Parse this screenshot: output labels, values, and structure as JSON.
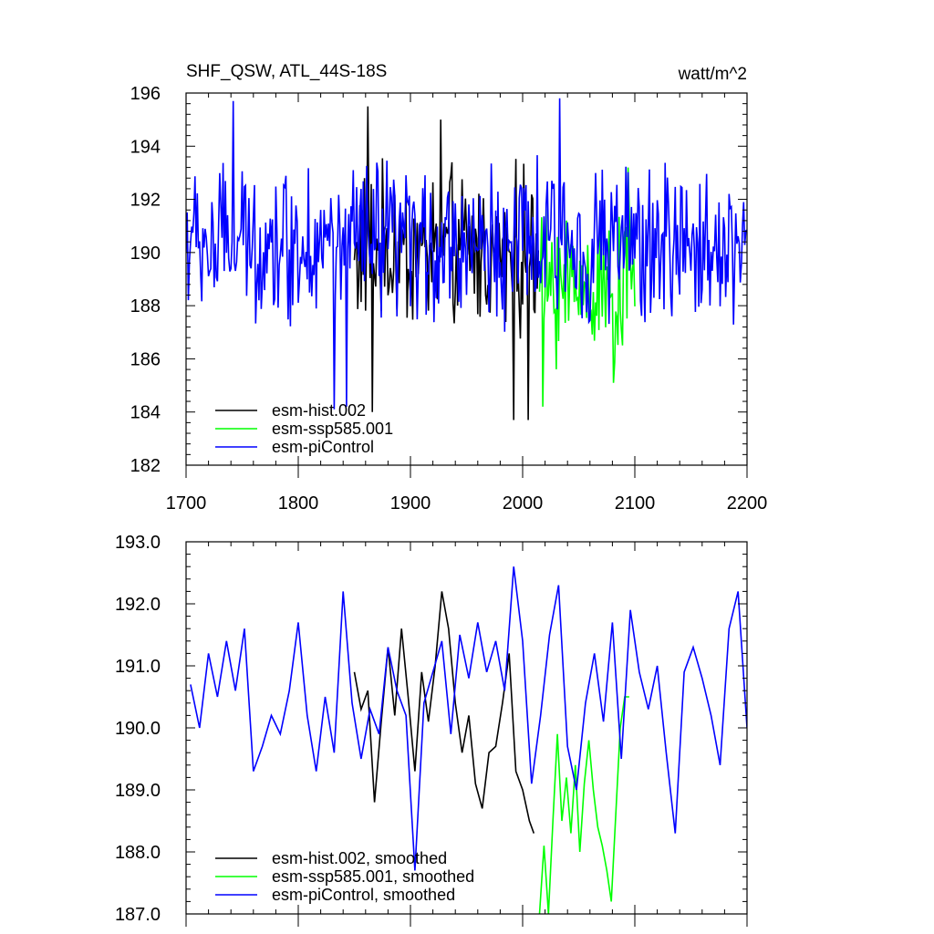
{
  "chart_data": [
    {
      "type": "line",
      "title": "SHF_QSW, ATL_44S-18S",
      "units": "watt/m^2",
      "xlim": [
        1700,
        2200
      ],
      "ylim": [
        182,
        196
      ],
      "x_ticks": [
        1700,
        1800,
        1900,
        2000,
        2100,
        2200
      ],
      "y_ticks": [
        182,
        184,
        186,
        188,
        190,
        192,
        194,
        196
      ],
      "legend": [
        "esm-hist.002",
        "esm-ssp585.001",
        "esm-piControl"
      ],
      "legend_position": "bottom-left",
      "series": [
        {
          "name": "esm-hist.002",
          "color": "#000000",
          "x_range": [
            1850,
            2014
          ],
          "mean": 190.0,
          "amplitude": 2.6,
          "notable": [
            {
              "x": 1862,
              "y": 195.5
            },
            {
              "x": 1866,
              "y": 184.0
            },
            {
              "x": 1992,
              "y": 183.7
            },
            {
              "x": 2005,
              "y": 183.7
            },
            {
              "x": 1927,
              "y": 195.0
            }
          ]
        },
        {
          "name": "esm-ssp585.001",
          "color": "#00ff00",
          "x_range": [
            2015,
            2100
          ],
          "mean": 188.8,
          "amplitude": 2.4,
          "notable": [
            {
              "x": 2018,
              "y": 184.2
            },
            {
              "x": 2094,
              "y": 193.2
            },
            {
              "x": 2081,
              "y": 185.1
            }
          ]
        },
        {
          "name": "esm-piControl",
          "color": "#0000ff",
          "x_range": [
            1700,
            2200
          ],
          "mean": 190.3,
          "amplitude": 2.5,
          "notable": [
            {
              "x": 1742,
              "y": 195.7
            },
            {
              "x": 2033,
              "y": 195.8
            },
            {
              "x": 1832,
              "y": 184.1
            },
            {
              "x": 1843,
              "y": 184.2
            }
          ]
        }
      ]
    },
    {
      "type": "line",
      "title": "",
      "xlim": [
        1700,
        2200
      ],
      "ylim": [
        187.0,
        193.0
      ],
      "y_ticks": [
        "187.0",
        "188.0",
        "189.0",
        "190.0",
        "191.0",
        "192.0",
        "193.0"
      ],
      "legend": [
        "esm-hist.002, smoothed",
        "esm-ssp585.001, smoothed",
        "esm-piControl, smoothed"
      ],
      "legend_position": "bottom-left",
      "series": [
        {
          "name": "esm-hist.002, smoothed",
          "color": "#000000",
          "x": [
            1850,
            1856,
            1862,
            1868,
            1874,
            1880,
            1886,
            1892,
            1898,
            1904,
            1910,
            1916,
            1922,
            1928,
            1934,
            1940,
            1946,
            1952,
            1958,
            1964,
            1970,
            1976,
            1982,
            1988,
            1994,
            2000,
            2006,
            2010
          ],
          "y": [
            190.9,
            190.3,
            190.6,
            188.8,
            190.1,
            191.3,
            190.2,
            191.6,
            190.5,
            189.3,
            190.9,
            190.1,
            191.0,
            192.2,
            191.6,
            190.4,
            189.6,
            190.2,
            189.1,
            188.7,
            189.6,
            189.7,
            190.4,
            191.2,
            189.3,
            189.0,
            188.5,
            188.3
          ]
        },
        {
          "name": "esm-ssp585.001, smoothed",
          "color": "#00ff00",
          "x": [
            2015,
            2019,
            2023,
            2027,
            2031,
            2035,
            2039,
            2043,
            2047,
            2051,
            2055,
            2059,
            2063,
            2067,
            2071,
            2075,
            2079,
            2083,
            2087,
            2091,
            2095
          ],
          "y": [
            187.0,
            188.1,
            187.0,
            188.5,
            189.9,
            188.5,
            189.2,
            188.3,
            189.4,
            188.0,
            189.1,
            189.8,
            189.0,
            188.4,
            188.1,
            187.7,
            187.2,
            188.6,
            190.0,
            190.5,
            190.5
          ]
        },
        {
          "name": "esm-piControl, smoothed",
          "color": "#0000ff",
          "x": [
            1704,
            1712,
            1720,
            1728,
            1736,
            1744,
            1752,
            1760,
            1768,
            1776,
            1784,
            1792,
            1800,
            1808,
            1816,
            1824,
            1832,
            1840,
            1848,
            1856,
            1864,
            1872,
            1880,
            1888,
            1896,
            1904,
            1912,
            1920,
            1928,
            1936,
            1944,
            1952,
            1960,
            1968,
            1976,
            1984,
            1992,
            2000,
            2008,
            2016,
            2024,
            2032,
            2040,
            2048,
            2056,
            2064,
            2072,
            2080,
            2088,
            2096,
            2104,
            2112,
            2120,
            2128,
            2136,
            2144,
            2152,
            2160,
            2168,
            2176,
            2184,
            2192,
            2200
          ],
          "y": [
            190.7,
            190.0,
            191.2,
            190.5,
            191.4,
            190.6,
            191.6,
            189.3,
            189.7,
            190.2,
            189.9,
            190.6,
            191.7,
            190.2,
            189.3,
            190.5,
            189.6,
            192.2,
            190.4,
            189.5,
            190.3,
            189.9,
            191.3,
            190.6,
            190.2,
            187.7,
            190.4,
            190.9,
            191.4,
            189.9,
            191.5,
            190.8,
            191.7,
            190.9,
            191.4,
            190.6,
            192.6,
            191.4,
            189.1,
            190.2,
            191.5,
            192.3,
            189.7,
            189.0,
            190.4,
            191.2,
            190.1,
            191.7,
            189.5,
            191.9,
            190.9,
            190.3,
            191.0,
            189.6,
            188.3,
            190.9,
            191.3,
            190.8,
            190.2,
            189.4,
            191.6,
            192.2,
            190.0
          ]
        }
      ]
    }
  ]
}
